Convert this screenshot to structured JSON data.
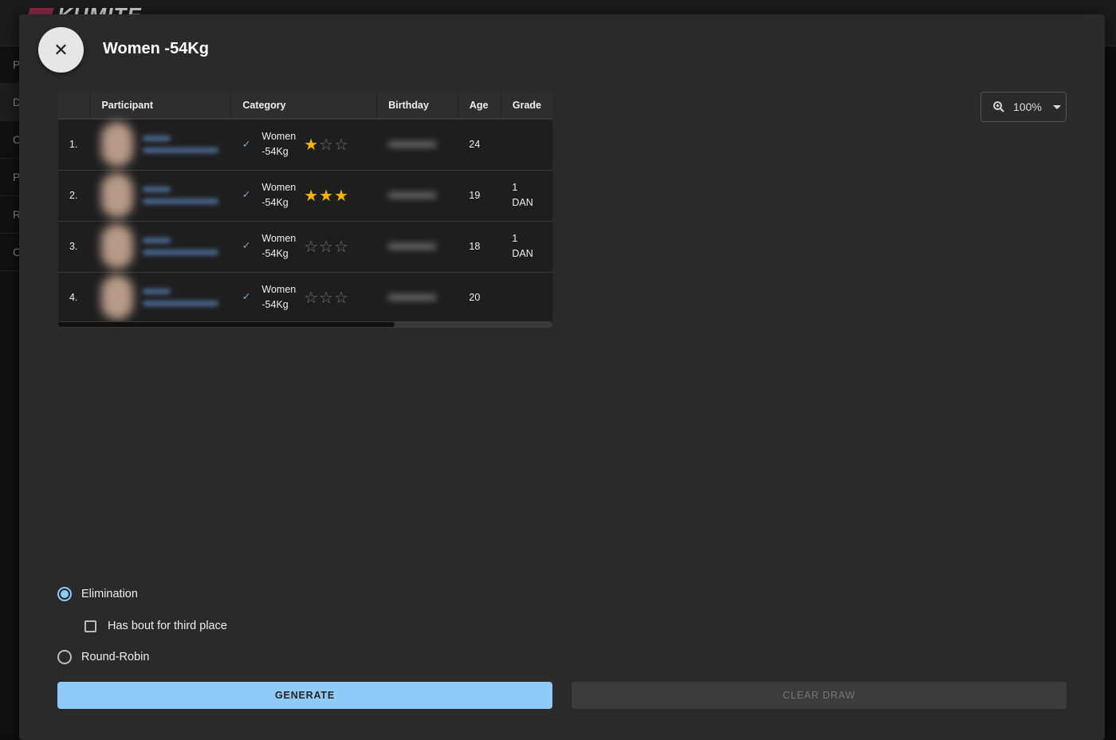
{
  "app": {
    "logo": "KUMITE",
    "sidebar_letters": [
      "P",
      "D",
      "C",
      "P",
      "R",
      "C"
    ]
  },
  "dialog": {
    "title": "Women -54Kg",
    "close_icon": "close-icon"
  },
  "zoom": {
    "value": "100%",
    "icon": "zoom-in-icon"
  },
  "table": {
    "columns": [
      "",
      "Participant",
      "Category",
      "Birthday",
      "Age",
      "Grade"
    ],
    "rows": [
      {
        "index": "1.",
        "category_line1": "Women",
        "category_line2": "-54Kg",
        "stars": 1,
        "age": "24",
        "grade_line1": "",
        "grade_line2": ""
      },
      {
        "index": "2.",
        "category_line1": "Women",
        "category_line2": "-54Kg",
        "stars": 3,
        "age": "19",
        "grade_line1": "1",
        "grade_line2": "DAN"
      },
      {
        "index": "3.",
        "category_line1": "Women",
        "category_line2": "-54Kg",
        "stars": 0,
        "age": "18",
        "grade_line1": "1",
        "grade_line2": "DAN"
      },
      {
        "index": "4.",
        "category_line1": "Women",
        "category_line2": "-54Kg",
        "stars": 0,
        "age": "20",
        "grade_line1": "",
        "grade_line2": ""
      }
    ]
  },
  "options": {
    "elimination": "Elimination",
    "third_place": "Has bout for third place",
    "round_robin": "Round-Robin",
    "selected": "elimination",
    "third_place_checked": false
  },
  "buttons": {
    "generate": "GENERATE",
    "clear": "CLEAR DRAW"
  },
  "colors": {
    "accent": "#90caf9",
    "star": "#f5b400"
  }
}
